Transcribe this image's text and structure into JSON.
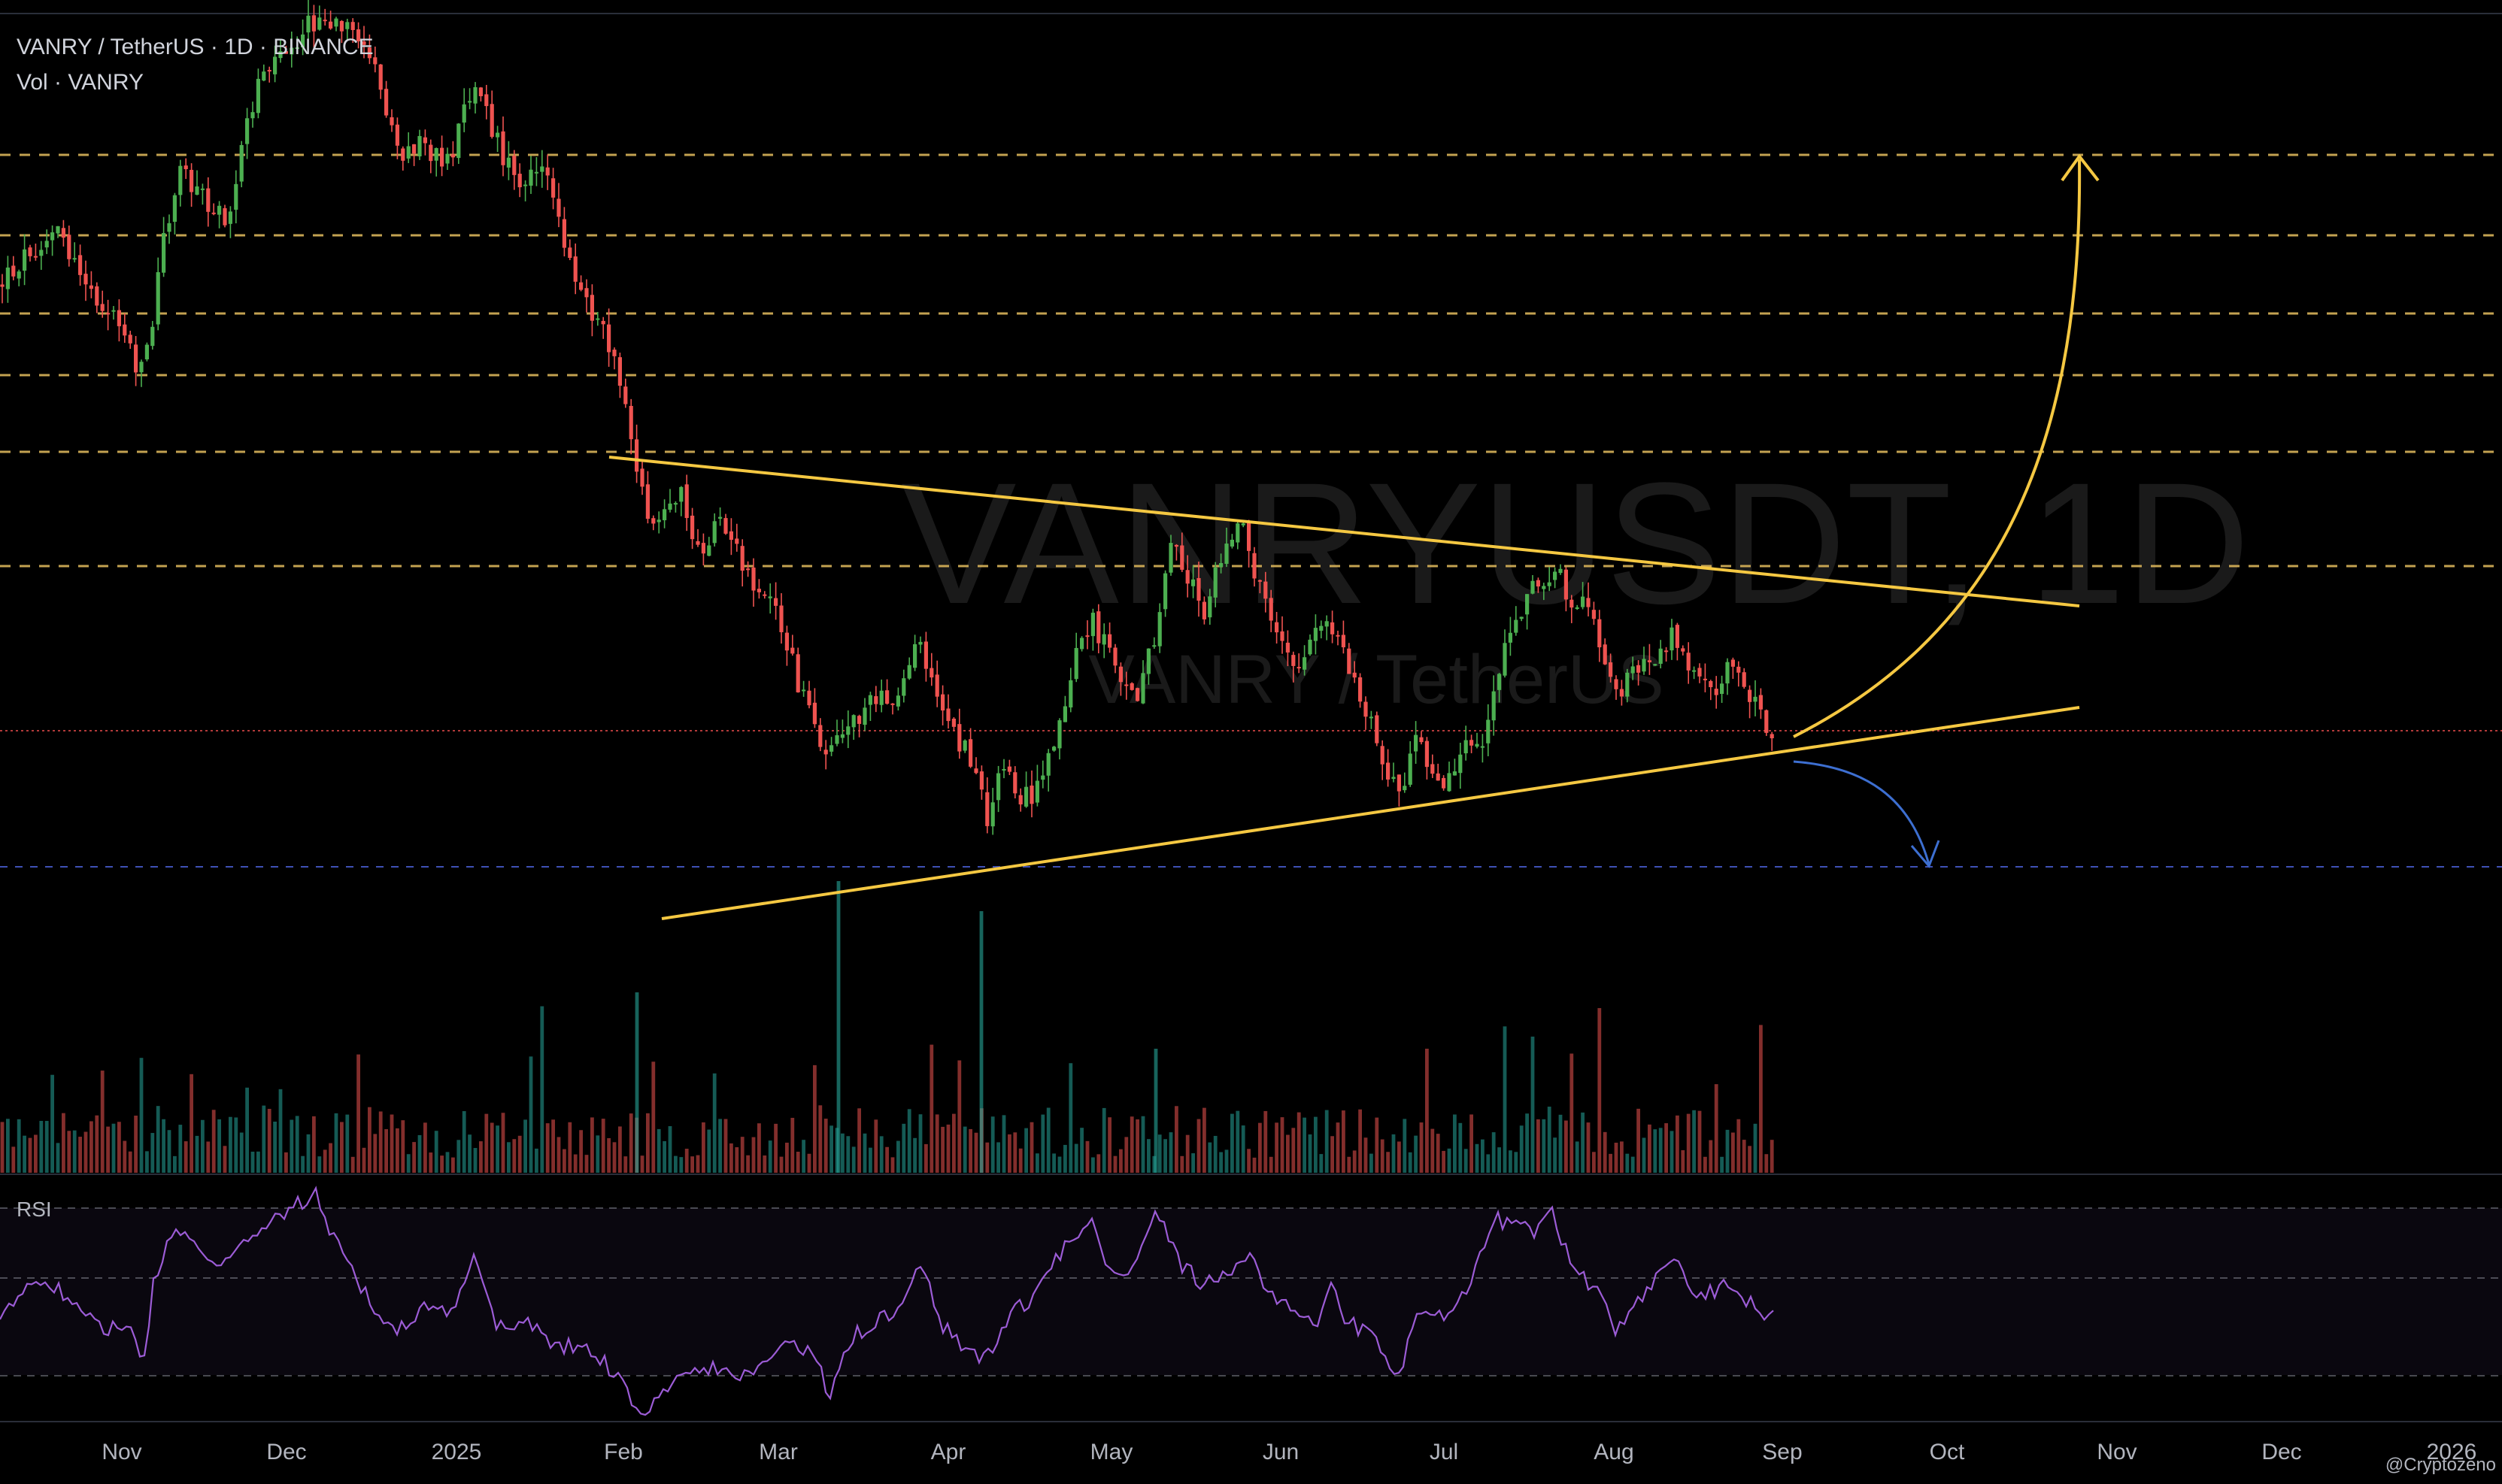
{
  "header": {
    "symbol_line": "VANRY / TetherUS · 1D · BINANCE",
    "volume_line": "Vol · VANRY"
  },
  "watermark": {
    "main": "VANRYUSDT, 1D",
    "sub": "VANRY / TetherUS"
  },
  "rsi": {
    "label": "RSI"
  },
  "credit": "@Cryptozeno",
  "colors": {
    "background": "#000000",
    "up": "#26a69a",
    "up_bright": "#4caf50",
    "down": "#ef5350",
    "pattern_line": "#f5c842",
    "resistance_dashed": "#d9b45a",
    "support_dashed": "#3f51b5",
    "price_line": "#b33a3a",
    "rsi_line": "#9c5cd6",
    "bearish_arrow": "#3d6fd1",
    "axis_text": "#b2b5be"
  },
  "chart_data": {
    "type": "candlestick",
    "title": "VANRY / TetherUS · 1D · BINANCE",
    "x_axis": {
      "tick_labels": [
        "Nov",
        "Dec",
        "2025",
        "Feb",
        "Mar",
        "Apr",
        "May",
        "Jun",
        "Jul",
        "Aug",
        "Sep",
        "Oct",
        "Nov",
        "Dec",
        "2026"
      ]
    },
    "annotations": [
      "symmetrical triangle: descending resistance from Feb 2025 highs, ascending support from Apr 2025 lows",
      "horizontal dashed resistance levels (6 levels) above price",
      "dashed support level near April low",
      "bullish breakout arrow toward top resistance by late Oct",
      "bearish breakdown arrow toward April-low support"
    ],
    "indicators": [
      "Volume",
      "RSI"
    ],
    "legend": "top-left",
    "grid": false
  }
}
